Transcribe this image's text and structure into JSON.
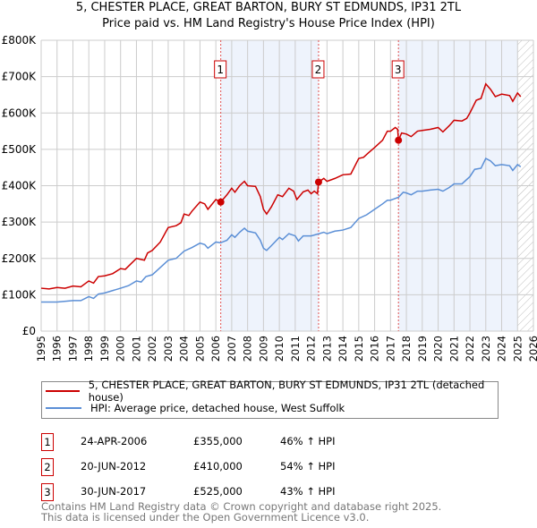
{
  "chart_data": {
    "type": "line",
    "title": "5, CHESTER PLACE, GREAT BARTON, BURY ST EDMUNDS, IP31 2TL",
    "subtitle": "Price paid vs. HM Land Registry's House Price Index (HPI)",
    "xlim": [
      1995,
      2026
    ],
    "ylim": [
      0,
      800000
    ],
    "x_ticks": [
      "1995",
      "1996",
      "1997",
      "1998",
      "1999",
      "2000",
      "2001",
      "2002",
      "2003",
      "2004",
      "2005",
      "2006",
      "2007",
      "2008",
      "2009",
      "2010",
      "2011",
      "2012",
      "2013",
      "2014",
      "2015",
      "2016",
      "2017",
      "2018",
      "2019",
      "2020",
      "2021",
      "2022",
      "2023",
      "2024",
      "2025",
      "2026"
    ],
    "y_ticks": [
      {
        "v": 0,
        "label": "£0"
      },
      {
        "v": 100000,
        "label": "£100K"
      },
      {
        "v": 200000,
        "label": "£200K"
      },
      {
        "v": 300000,
        "label": "£300K"
      },
      {
        "v": 400000,
        "label": "£400K"
      },
      {
        "v": 500000,
        "label": "£500K"
      },
      {
        "v": 600000,
        "label": "£600K"
      },
      {
        "v": 700000,
        "label": "£700K"
      },
      {
        "v": 800000,
        "label": "£800K"
      }
    ],
    "grid": true,
    "series": [
      {
        "name": "5, CHESTER PLACE, GREAT BARTON, BURY ST EDMUNDS, IP31 2TL (detached house)",
        "color": "#cc0000",
        "points": [
          [
            1995,
            118
          ],
          [
            1995.5,
            116
          ],
          [
            1996,
            120
          ],
          [
            1996.5,
            118
          ],
          [
            1997,
            124
          ],
          [
            1997.5,
            122
          ],
          [
            1998,
            138
          ],
          [
            1998.3,
            132
          ],
          [
            1998.6,
            150
          ],
          [
            1999,
            152
          ],
          [
            1999.5,
            158
          ],
          [
            2000,
            172
          ],
          [
            2000.3,
            170
          ],
          [
            2001,
            200
          ],
          [
            2001.5,
            195
          ],
          [
            2001.7,
            215
          ],
          [
            2002,
            222
          ],
          [
            2002.5,
            245
          ],
          [
            2003,
            285
          ],
          [
            2003.5,
            290
          ],
          [
            2003.8,
            298
          ],
          [
            2004,
            322
          ],
          [
            2004.3,
            318
          ],
          [
            2004.5,
            330
          ],
          [
            2005,
            355
          ],
          [
            2005.3,
            350
          ],
          [
            2005.5,
            335
          ],
          [
            2006,
            362
          ],
          [
            2006.31,
            355
          ],
          [
            2006.7,
            375
          ],
          [
            2007,
            393
          ],
          [
            2007.2,
            382
          ],
          [
            2007.5,
            400
          ],
          [
            2007.8,
            412
          ],
          [
            2008,
            400
          ],
          [
            2008.5,
            398
          ],
          [
            2008.8,
            370
          ],
          [
            2009,
            335
          ],
          [
            2009.2,
            322
          ],
          [
            2009.5,
            342
          ],
          [
            2009.9,
            375
          ],
          [
            2010.2,
            370
          ],
          [
            2010.6,
            393
          ],
          [
            2010.9,
            385
          ],
          [
            2011.1,
            362
          ],
          [
            2011.5,
            383
          ],
          [
            2011.8,
            388
          ],
          [
            2012,
            378
          ],
          [
            2012.2,
            385
          ],
          [
            2012.4,
            378
          ],
          [
            2012.47,
            410
          ],
          [
            2012.8,
            420
          ],
          [
            2013,
            412
          ],
          [
            2013.5,
            420
          ],
          [
            2014,
            430
          ],
          [
            2014.5,
            432
          ],
          [
            2015,
            475
          ],
          [
            2015.3,
            478
          ],
          [
            2015.6,
            490
          ],
          [
            2016,
            505
          ],
          [
            2016.5,
            525
          ],
          [
            2016.8,
            550
          ],
          [
            2017,
            550
          ],
          [
            2017.3,
            560
          ],
          [
            2017.45,
            555
          ],
          [
            2017.5,
            525
          ],
          [
            2017.7,
            545
          ],
          [
            2018,
            542
          ],
          [
            2018.3,
            535
          ],
          [
            2018.7,
            550
          ],
          [
            2019,
            552
          ],
          [
            2019.5,
            555
          ],
          [
            2020,
            560
          ],
          [
            2020.3,
            548
          ],
          [
            2020.7,
            565
          ],
          [
            2021,
            580
          ],
          [
            2021.5,
            578
          ],
          [
            2021.8,
            585
          ],
          [
            2022,
            600
          ],
          [
            2022.4,
            635
          ],
          [
            2022.7,
            640
          ],
          [
            2023,
            680
          ],
          [
            2023.3,
            665
          ],
          [
            2023.6,
            645
          ],
          [
            2024,
            652
          ],
          [
            2024.5,
            648
          ],
          [
            2024.7,
            632
          ],
          [
            2025,
            655
          ],
          [
            2025.2,
            645
          ]
        ]
      },
      {
        "name": "HPI: Average price, detached house, West Suffolk",
        "color": "#5b8fd6",
        "points": [
          [
            1995,
            80
          ],
          [
            1996,
            80
          ],
          [
            1997,
            84
          ],
          [
            1997.5,
            84
          ],
          [
            1998,
            95
          ],
          [
            1998.3,
            90
          ],
          [
            1998.6,
            102
          ],
          [
            1999,
            105
          ],
          [
            2000,
            118
          ],
          [
            2000.5,
            125
          ],
          [
            2001,
            138
          ],
          [
            2001.3,
            135
          ],
          [
            2001.6,
            150
          ],
          [
            2002,
            155
          ],
          [
            2002.5,
            175
          ],
          [
            2003,
            195
          ],
          [
            2003.5,
            200
          ],
          [
            2004,
            220
          ],
          [
            2004.5,
            230
          ],
          [
            2005,
            242
          ],
          [
            2005.3,
            238
          ],
          [
            2005.5,
            228
          ],
          [
            2006,
            245
          ],
          [
            2006.3,
            243
          ],
          [
            2006.7,
            250
          ],
          [
            2007,
            265
          ],
          [
            2007.2,
            258
          ],
          [
            2007.5,
            272
          ],
          [
            2007.8,
            283
          ],
          [
            2008,
            275
          ],
          [
            2008.5,
            270
          ],
          [
            2008.8,
            250
          ],
          [
            2009,
            228
          ],
          [
            2009.2,
            222
          ],
          [
            2009.5,
            235
          ],
          [
            2010,
            258
          ],
          [
            2010.2,
            252
          ],
          [
            2010.6,
            268
          ],
          [
            2011,
            262
          ],
          [
            2011.2,
            248
          ],
          [
            2011.5,
            262
          ],
          [
            2012,
            262
          ],
          [
            2012.5,
            268
          ],
          [
            2012.8,
            272
          ],
          [
            2013,
            268
          ],
          [
            2013.5,
            275
          ],
          [
            2014,
            278
          ],
          [
            2014.5,
            285
          ],
          [
            2015,
            310
          ],
          [
            2015.5,
            320
          ],
          [
            2016,
            335
          ],
          [
            2016.5,
            350
          ],
          [
            2016.8,
            360
          ],
          [
            2017,
            360
          ],
          [
            2017.5,
            368
          ],
          [
            2017.8,
            382
          ],
          [
            2018,
            380
          ],
          [
            2018.3,
            375
          ],
          [
            2018.7,
            385
          ],
          [
            2019,
            385
          ],
          [
            2019.5,
            388
          ],
          [
            2020,
            390
          ],
          [
            2020.3,
            385
          ],
          [
            2020.7,
            395
          ],
          [
            2021,
            405
          ],
          [
            2021.5,
            405
          ],
          [
            2022,
            425
          ],
          [
            2022.3,
            445
          ],
          [
            2022.7,
            448
          ],
          [
            2023,
            475
          ],
          [
            2023.3,
            468
          ],
          [
            2023.6,
            455
          ],
          [
            2024,
            458
          ],
          [
            2024.5,
            455
          ],
          [
            2024.7,
            442
          ],
          [
            2025,
            458
          ],
          [
            2025.2,
            452
          ]
        ]
      }
    ],
    "sales": [
      {
        "id": "1",
        "x": 2006.31,
        "value": 355000,
        "date": "24-APR-2006",
        "price": "£355,000",
        "hpi": "46% ↑ HPI"
      },
      {
        "id": "2",
        "x": 2012.47,
        "value": 410000,
        "date": "20-JUN-2012",
        "price": "£410,000",
        "hpi": "54% ↑ HPI"
      },
      {
        "id": "3",
        "x": 2017.5,
        "value": 525000,
        "date": "30-JUN-2017",
        "price": "£525,000",
        "hpi": "43% ↑ HPI"
      }
    ],
    "shaded_ranges": [
      [
        2006.31,
        2012.47
      ],
      [
        2017.5,
        2025.0
      ]
    ],
    "hatched_range": [
      2025.0,
      2026
    ],
    "legend_placement": "bottom"
  },
  "footer": [
    "Contains HM Land Registry data © Crown copyright and database right 2025.",
    "This data is licensed under the Open Government Licence v3.0."
  ]
}
